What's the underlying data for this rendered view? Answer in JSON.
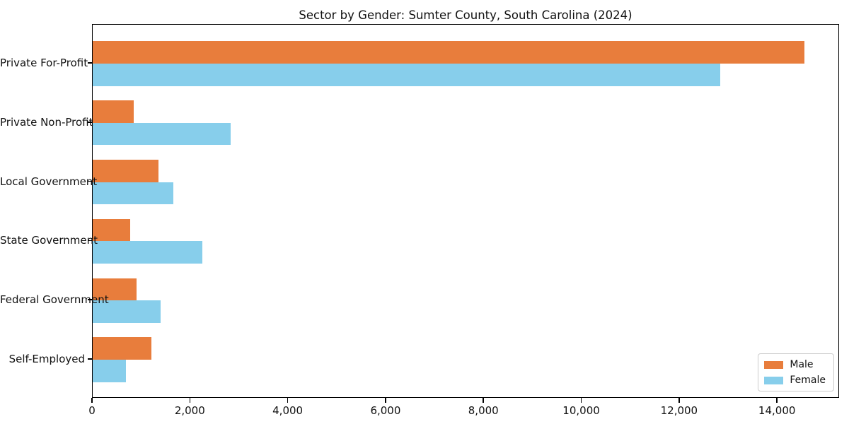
{
  "figure": {
    "background_color": "#ffffff",
    "text_color": "#111111"
  },
  "chart_data": {
    "type": "bar",
    "orientation": "horizontal",
    "title": "Sector by Gender: Sumter County, South Carolina (2024)",
    "categories": [
      "Private For-Profit",
      "Private Non-Profit",
      "Local Government",
      "State Government",
      "Federal Government",
      "Self-Employed"
    ],
    "series": [
      {
        "name": "Male",
        "color": "#E87D3C",
        "values": [
          14550,
          835,
          1340,
          765,
          900,
          1200
        ]
      },
      {
        "name": "Female",
        "color": "#87CEEB",
        "values": [
          12820,
          2820,
          1645,
          2235,
          1390,
          680
        ]
      }
    ],
    "xlabel": "",
    "ylabel": "",
    "xlim": [
      0,
      15270
    ],
    "x_ticks": [
      0,
      2000,
      4000,
      6000,
      8000,
      10000,
      12000,
      14000
    ],
    "x_tick_labels": [
      "0",
      "2,000",
      "4,000",
      "6,000",
      "8,000",
      "10,000",
      "12,000",
      "14,000"
    ],
    "grid": false,
    "legend_position": "lower right"
  }
}
